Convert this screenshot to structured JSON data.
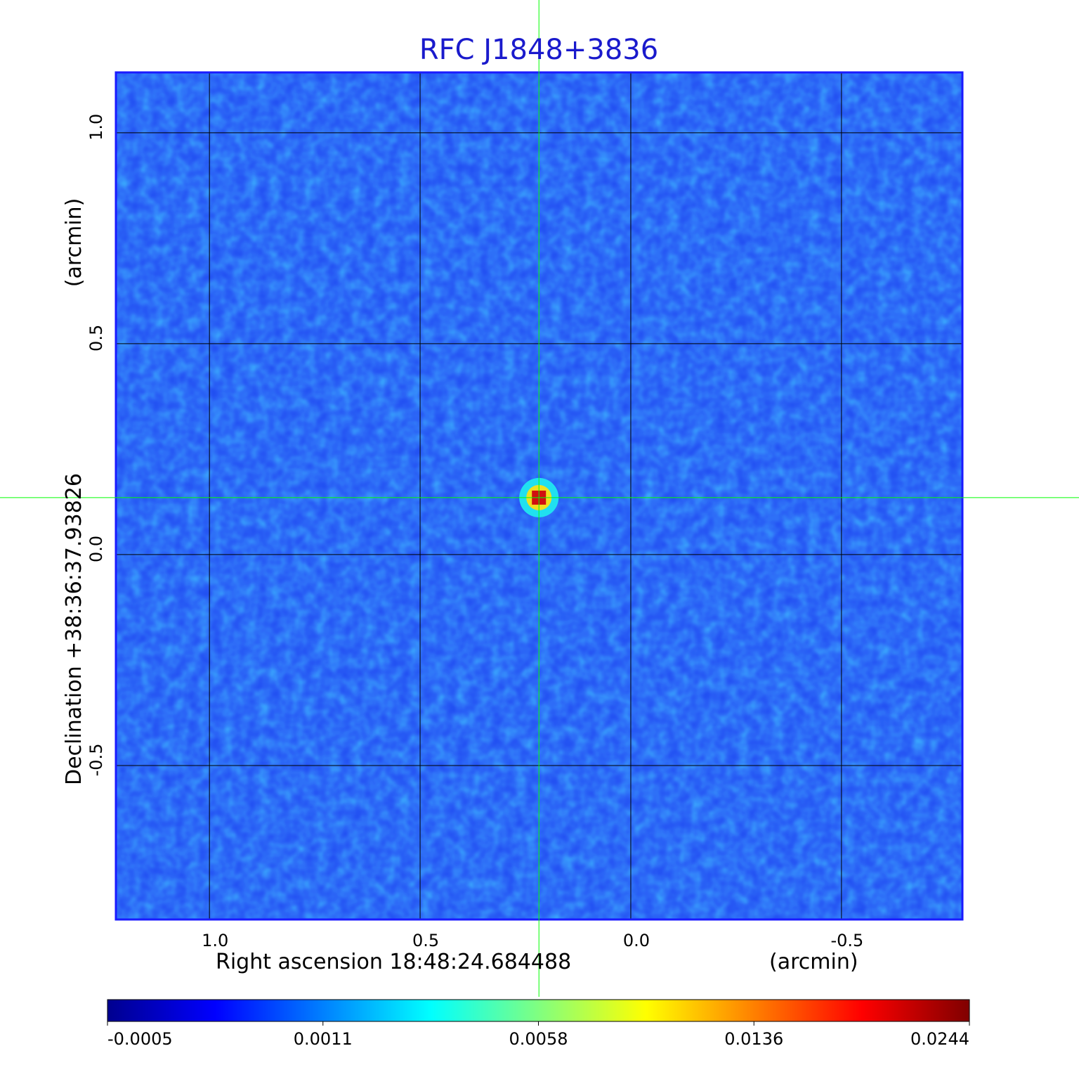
{
  "chart_data": {
    "type": "image",
    "title": "RFC J1848+3836",
    "x_label": "Right ascension  18:48:24.684488",
    "x_unit": "(arcmin)",
    "y_label": "Declination  +38:36:37.93826",
    "y_unit": "(arcmin)",
    "xlim": [
      1.222,
      -0.787
    ],
    "ylim": [
      -0.865,
      1.143
    ],
    "xticks": [
      {
        "value": 1,
        "label": "1.0"
      },
      0.5,
      {
        "value": 0,
        "label": "0.0"
      },
      -0.5
    ],
    "yticks": [
      {
        "value": 1,
        "label": "1.0"
      },
      0.5,
      {
        "value": 0,
        "label": "0.0"
      },
      -0.5
    ],
    "grid": true,
    "marker": {
      "x": 0.218,
      "y": 0.135,
      "color": "#00ff00"
    },
    "colorbar": {
      "ticks": [
        -0.0005,
        0.0011,
        0.0058,
        0.0136,
        0.0244
      ],
      "colors": [
        "#00008f",
        "#0000ff",
        "#0080ff",
        "#00ffff",
        "#80ff80",
        "#ffff00",
        "#ff8000",
        "#ff0000",
        "#800000"
      ]
    }
  }
}
